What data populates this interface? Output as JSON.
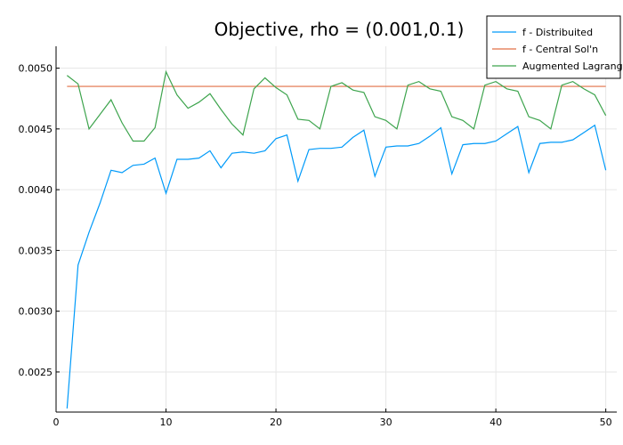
{
  "chart_data": {
    "type": "line",
    "title": "Objective, rho = (0.001,0.1)",
    "xlabel": "",
    "ylabel": "",
    "xlim": [
      0,
      51
    ],
    "ylim": [
      0.00217,
      0.00518
    ],
    "xticks": [
      0,
      10,
      20,
      30,
      40,
      50
    ],
    "yticks": [
      0.0025,
      0.003,
      0.0035,
      0.004,
      0.0045,
      0.005
    ],
    "xtick_labels": [
      "0",
      "10",
      "20",
      "30",
      "40",
      "50"
    ],
    "ytick_labels": [
      "0.0025",
      "0.0030",
      "0.0035",
      "0.0040",
      "0.0045",
      "0.0050"
    ],
    "grid": true,
    "legend_position": "top-right",
    "x": [
      1,
      2,
      3,
      4,
      5,
      6,
      7,
      8,
      9,
      10,
      11,
      12,
      13,
      14,
      15,
      16,
      17,
      18,
      19,
      20,
      21,
      22,
      23,
      24,
      25,
      26,
      27,
      28,
      29,
      30,
      31,
      32,
      33,
      34,
      35,
      36,
      37,
      38,
      39,
      40,
      41,
      42,
      43,
      44,
      45,
      46,
      47,
      48,
      49,
      50
    ],
    "series": [
      {
        "name": "f - Distribuited",
        "color": "#009af9",
        "values": [
          0.0022,
          0.00338,
          0.00365,
          0.00389,
          0.00416,
          0.00414,
          0.0042,
          0.00421,
          0.00426,
          0.00397,
          0.00425,
          0.00425,
          0.00426,
          0.00432,
          0.00418,
          0.0043,
          0.00431,
          0.0043,
          0.00432,
          0.00442,
          0.00445,
          0.00407,
          0.00433,
          0.00434,
          0.00434,
          0.00435,
          0.00443,
          0.00449,
          0.00411,
          0.00435,
          0.00436,
          0.00436,
          0.00438,
          0.00444,
          0.00451,
          0.00413,
          0.00437,
          0.00438,
          0.00438,
          0.0044,
          0.00446,
          0.00452,
          0.00414,
          0.00438,
          0.00439,
          0.00439,
          0.00441,
          0.00447,
          0.00453,
          0.00416
        ]
      },
      {
        "name": "f - Central Sol'n",
        "color": "#e26f46",
        "values": [
          0.00485,
          0.00485,
          0.00485,
          0.00485,
          0.00485,
          0.00485,
          0.00485,
          0.00485,
          0.00485,
          0.00485,
          0.00485,
          0.00485,
          0.00485,
          0.00485,
          0.00485,
          0.00485,
          0.00485,
          0.00485,
          0.00485,
          0.00485,
          0.00485,
          0.00485,
          0.00485,
          0.00485,
          0.00485,
          0.00485,
          0.00485,
          0.00485,
          0.00485,
          0.00485,
          0.00485,
          0.00485,
          0.00485,
          0.00485,
          0.00485,
          0.00485,
          0.00485,
          0.00485,
          0.00485,
          0.00485,
          0.00485,
          0.00485,
          0.00485,
          0.00485,
          0.00485,
          0.00485,
          0.00485,
          0.00485,
          0.00485,
          0.00485
        ]
      },
      {
        "name": "Augmented Lagrange",
        "color": "#3da44d",
        "values": [
          0.00494,
          0.00487,
          0.0045,
          0.00462,
          0.00474,
          0.00455,
          0.0044,
          0.0044,
          0.00451,
          0.00497,
          0.00478,
          0.00467,
          0.00472,
          0.00479,
          0.00466,
          0.00454,
          0.00445,
          0.00483,
          0.00492,
          0.00484,
          0.00478,
          0.00458,
          0.00457,
          0.0045,
          0.00485,
          0.00488,
          0.00482,
          0.0048,
          0.0046,
          0.00457,
          0.0045,
          0.00486,
          0.00489,
          0.00483,
          0.00481,
          0.0046,
          0.00457,
          0.0045,
          0.00486,
          0.00489,
          0.00483,
          0.00481,
          0.0046,
          0.00457,
          0.0045,
          0.00486,
          0.00489,
          0.00483,
          0.00478,
          0.00461
        ]
      }
    ]
  }
}
